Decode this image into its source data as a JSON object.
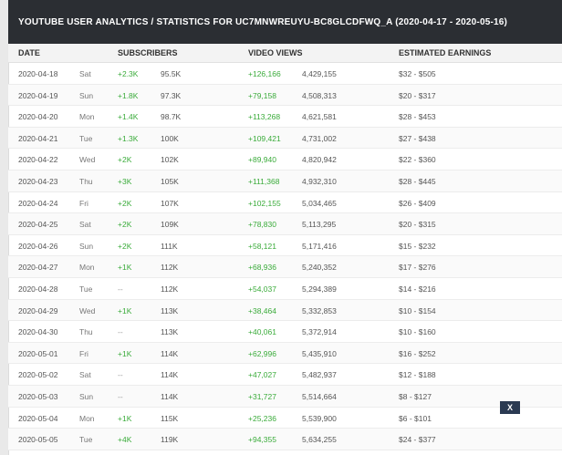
{
  "title": "YOUTUBE USER ANALYTICS / STATISTICS FOR UC7MNWREUYU-BC8GLCDFWQ_A (2020-04-17 - 2020-05-16)",
  "columns": {
    "date": "DATE",
    "subscribers": "SUBSCRIBERS",
    "video_views": "VIDEO VIEWS",
    "estimated_earnings": "ESTIMATED EARNINGS"
  },
  "rows": [
    {
      "date": "2020-04-18",
      "day": "Sat",
      "sub_change": "+2.3K",
      "subscribers": "95.5K",
      "view_change": "+126,166",
      "views": "4,429,155",
      "earnings": "$32 - $505"
    },
    {
      "date": "2020-04-19",
      "day": "Sun",
      "sub_change": "+1.8K",
      "subscribers": "97.3K",
      "view_change": "+79,158",
      "views": "4,508,313",
      "earnings": "$20 - $317"
    },
    {
      "date": "2020-04-20",
      "day": "Mon",
      "sub_change": "+1.4K",
      "subscribers": "98.7K",
      "view_change": "+113,268",
      "views": "4,621,581",
      "earnings": "$28 - $453"
    },
    {
      "date": "2020-04-21",
      "day": "Tue",
      "sub_change": "+1.3K",
      "subscribers": "100K",
      "view_change": "+109,421",
      "views": "4,731,002",
      "earnings": "$27 - $438"
    },
    {
      "date": "2020-04-22",
      "day": "Wed",
      "sub_change": "+2K",
      "subscribers": "102K",
      "view_change": "+89,940",
      "views": "4,820,942",
      "earnings": "$22 - $360"
    },
    {
      "date": "2020-04-23",
      "day": "Thu",
      "sub_change": "+3K",
      "subscribers": "105K",
      "view_change": "+111,368",
      "views": "4,932,310",
      "earnings": "$28 - $445"
    },
    {
      "date": "2020-04-24",
      "day": "Fri",
      "sub_change": "+2K",
      "subscribers": "107K",
      "view_change": "+102,155",
      "views": "5,034,465",
      "earnings": "$26 - $409"
    },
    {
      "date": "2020-04-25",
      "day": "Sat",
      "sub_change": "+2K",
      "subscribers": "109K",
      "view_change": "+78,830",
      "views": "5,113,295",
      "earnings": "$20 - $315"
    },
    {
      "date": "2020-04-26",
      "day": "Sun",
      "sub_change": "+2K",
      "subscribers": "111K",
      "view_change": "+58,121",
      "views": "5,171,416",
      "earnings": "$15 - $232"
    },
    {
      "date": "2020-04-27",
      "day": "Mon",
      "sub_change": "+1K",
      "subscribers": "112K",
      "view_change": "+68,936",
      "views": "5,240,352",
      "earnings": "$17 - $276"
    },
    {
      "date": "2020-04-28",
      "day": "Tue",
      "sub_change": "--",
      "subscribers": "112K",
      "view_change": "+54,037",
      "views": "5,294,389",
      "earnings": "$14 - $216"
    },
    {
      "date": "2020-04-29",
      "day": "Wed",
      "sub_change": "+1K",
      "subscribers": "113K",
      "view_change": "+38,464",
      "views": "5,332,853",
      "earnings": "$10 - $154"
    },
    {
      "date": "2020-04-30",
      "day": "Thu",
      "sub_change": "--",
      "subscribers": "113K",
      "view_change": "+40,061",
      "views": "5,372,914",
      "earnings": "$10 - $160"
    },
    {
      "date": "2020-05-01",
      "day": "Fri",
      "sub_change": "+1K",
      "subscribers": "114K",
      "view_change": "+62,996",
      "views": "5,435,910",
      "earnings": "$16 - $252"
    },
    {
      "date": "2020-05-02",
      "day": "Sat",
      "sub_change": "--",
      "subscribers": "114K",
      "view_change": "+47,027",
      "views": "5,482,937",
      "earnings": "$12 - $188"
    },
    {
      "date": "2020-05-03",
      "day": "Sun",
      "sub_change": "--",
      "subscribers": "114K",
      "view_change": "+31,727",
      "views": "5,514,664",
      "earnings": "$8 - $127"
    },
    {
      "date": "2020-05-04",
      "day": "Mon",
      "sub_change": "+1K",
      "subscribers": "115K",
      "view_change": "+25,236",
      "views": "5,539,900",
      "earnings": "$6 - $101"
    },
    {
      "date": "2020-05-05",
      "day": "Tue",
      "sub_change": "+4K",
      "subscribers": "119K",
      "view_change": "+94,355",
      "views": "5,634,255",
      "earnings": "$24 - $377"
    }
  ],
  "close_label": "X",
  "colors": {
    "header_bg": "#2b2e33",
    "positive": "#3aab3a",
    "close_bg": "#2b3a52"
  }
}
